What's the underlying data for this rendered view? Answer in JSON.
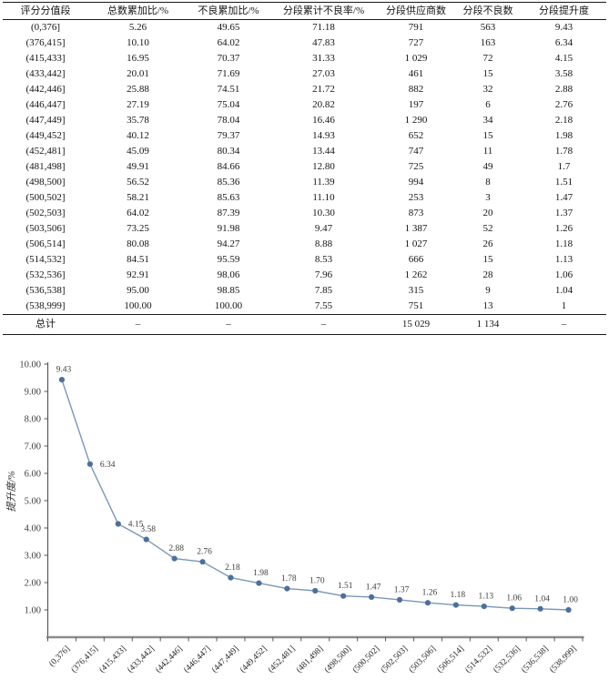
{
  "table": {
    "headers": [
      "评分分值段",
      "总数累加比/%",
      "不良累加比/%",
      "分段累计不良率/%",
      "分段供应商数",
      "分段不良数",
      "分段提升度"
    ],
    "rows": [
      [
        "(0,376]",
        "5.26",
        "49.65",
        "71.18",
        "791",
        "563",
        "9.43"
      ],
      [
        "(376,415]",
        "10.10",
        "64.02",
        "47.83",
        "727",
        "163",
        "6.34"
      ],
      [
        "(415,433]",
        "16.95",
        "70.37",
        "31.33",
        "1 029",
        "72",
        "4.15"
      ],
      [
        "(433,442]",
        "20.01",
        "71.69",
        "27.03",
        "461",
        "15",
        "3.58"
      ],
      [
        "(442,446]",
        "25.88",
        "74.51",
        "21.72",
        "882",
        "32",
        "2.88"
      ],
      [
        "(446,447]",
        "27.19",
        "75.04",
        "20.82",
        "197",
        "6",
        "2.76"
      ],
      [
        "(447,449]",
        "35.78",
        "78.04",
        "16.46",
        "1 290",
        "34",
        "2.18"
      ],
      [
        "(449,452]",
        "40.12",
        "79.37",
        "14.93",
        "652",
        "15",
        "1.98"
      ],
      [
        "(452,481]",
        "45.09",
        "80.34",
        "13.44",
        "747",
        "11",
        "1.78"
      ],
      [
        "(481,498]",
        "49.91",
        "84.66",
        "12.80",
        "725",
        "49",
        "1.7"
      ],
      [
        "(498,500]",
        "56.52",
        "85.36",
        "11.39",
        "994",
        "8",
        "1.51"
      ],
      [
        "(500,502]",
        "58.21",
        "85.63",
        "11.10",
        "253",
        "3",
        "1.47"
      ],
      [
        "(502,503]",
        "64.02",
        "87.39",
        "10.30",
        "873",
        "20",
        "1.37"
      ],
      [
        "(503,506]",
        "73.25",
        "91.98",
        "9.47",
        "1 387",
        "52",
        "1.26"
      ],
      [
        "(506,514]",
        "80.08",
        "94.27",
        "8.88",
        "1 027",
        "26",
        "1.18"
      ],
      [
        "(514,532]",
        "84.51",
        "95.59",
        "8.53",
        "666",
        "15",
        "1.13"
      ],
      [
        "(532,536]",
        "92.91",
        "98.06",
        "7.96",
        "1 262",
        "28",
        "1.06"
      ],
      [
        "(536,538]",
        "95.00",
        "98.85",
        "7.85",
        "315",
        "9",
        "1.04"
      ],
      [
        "(538,999]",
        "100.00",
        "100.00",
        "7.55",
        "751",
        "13",
        "1"
      ]
    ],
    "total_row": [
      "总计",
      "–",
      "–",
      "–",
      "15 029",
      "1 134",
      "–"
    ]
  },
  "chart_data": {
    "type": "line",
    "title": "",
    "xlabel": "",
    "ylabel": "提升度/%",
    "categories": [
      "(0,376]",
      "(376,415]",
      "(415,433]",
      "(433,442]",
      "(442,446]",
      "(446,447]",
      "(447,449]",
      "(449,452]",
      "(452,481]",
      "(481,498]",
      "(498,500]",
      "(500,502]",
      "(502,503]",
      "(503,506]",
      "(506,514]",
      "(514,532]",
      "(532,536]",
      "(536,538]",
      "(538,999]"
    ],
    "series": [
      {
        "name": "分段提升度",
        "values": [
          9.43,
          6.34,
          4.15,
          3.58,
          2.88,
          2.76,
          2.18,
          1.98,
          1.78,
          1.7,
          1.51,
          1.47,
          1.37,
          1.26,
          1.18,
          1.13,
          1.06,
          1.04,
          1.0
        ]
      }
    ],
    "point_labels": [
      "9.43",
      "6.34",
      "4.15",
      "3.58",
      "2.88",
      "2.76",
      "2.18",
      "1.98",
      "1.78",
      "1.70",
      "1.51",
      "1.47",
      "1.37",
      "1.26",
      "1.18",
      "1.13",
      "1.06",
      "1.04",
      "1.00"
    ],
    "ylim": [
      0,
      10
    ],
    "ytick_labels": [
      "1.00",
      "2.00",
      "3.00",
      "4.00",
      "5.00",
      "6.00",
      "7.00",
      "8.00",
      "9.00",
      "10.00"
    ],
    "grid": false,
    "legend": "none",
    "colors": {
      "line": "#7b97ba",
      "marker": "#4c6f9c",
      "axis": "#595959",
      "baseline": "#8c8c8c",
      "tick_label": "#3d3d3d",
      "data_label": "#3d3d3d"
    }
  }
}
